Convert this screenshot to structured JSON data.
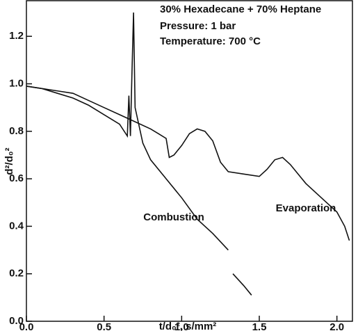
{
  "chart_data": {
    "type": "line",
    "xlabel": "t/d₀², s/mm²",
    "ylabel": "d²/d₀²",
    "annotations": [
      "30% Hexadecane + 70% Heptane",
      "Pressure: 1 bar",
      "Temperature: 700 °C"
    ],
    "xlim": [
      0,
      2.1
    ],
    "ylim": [
      0,
      1.35
    ],
    "xticks": [
      {
        "value": 0,
        "label": "0.0"
      },
      0.5,
      {
        "value": 1,
        "label": "1.0"
      },
      1.5,
      {
        "value": 2,
        "label": "2.0"
      }
    ],
    "yticks": [
      {
        "value": 0,
        "label": "0.0"
      },
      0.2,
      0.4,
      0.6,
      0.8,
      {
        "value": 1,
        "label": "1.0"
      },
      1.2
    ],
    "series": [
      {
        "name": "Evaporation",
        "color": "#111111",
        "x": [
          0,
          0.1,
          0.2,
          0.3,
          0.4,
          0.5,
          0.6,
          0.7,
          0.8,
          0.85,
          0.9,
          0.92,
          0.95,
          1.0,
          1.05,
          1.1,
          1.15,
          1.2,
          1.25,
          1.3,
          1.4,
          1.5,
          1.55,
          1.6,
          1.65,
          1.7,
          1.8,
          1.9,
          2.0,
          2.05,
          2.08
        ],
        "values": [
          0.99,
          0.98,
          0.97,
          0.96,
          0.93,
          0.9,
          0.87,
          0.84,
          0.81,
          0.79,
          0.77,
          0.69,
          0.7,
          0.74,
          0.79,
          0.81,
          0.8,
          0.76,
          0.67,
          0.63,
          0.62,
          0.61,
          0.64,
          0.68,
          0.69,
          0.66,
          0.58,
          0.52,
          0.46,
          0.4,
          0.34
        ]
      },
      {
        "name": "Combustion",
        "color": "#111111",
        "x": [
          0,
          0.1,
          0.2,
          0.3,
          0.4,
          0.5,
          0.6,
          0.65,
          0.66,
          0.67,
          0.68,
          0.69,
          0.7,
          0.75,
          0.8,
          0.9,
          1.0,
          1.1,
          1.2,
          1.3,
          1.31,
          1.33,
          1.4,
          1.45
        ],
        "values": [
          0.99,
          0.98,
          0.96,
          0.94,
          0.91,
          0.87,
          0.83,
          0.78,
          0.95,
          0.78,
          1.05,
          1.3,
          0.9,
          0.75,
          0.68,
          0.6,
          0.52,
          0.43,
          0.37,
          0.3,
          null,
          0.2,
          0.15,
          0.11
        ]
      }
    ]
  }
}
